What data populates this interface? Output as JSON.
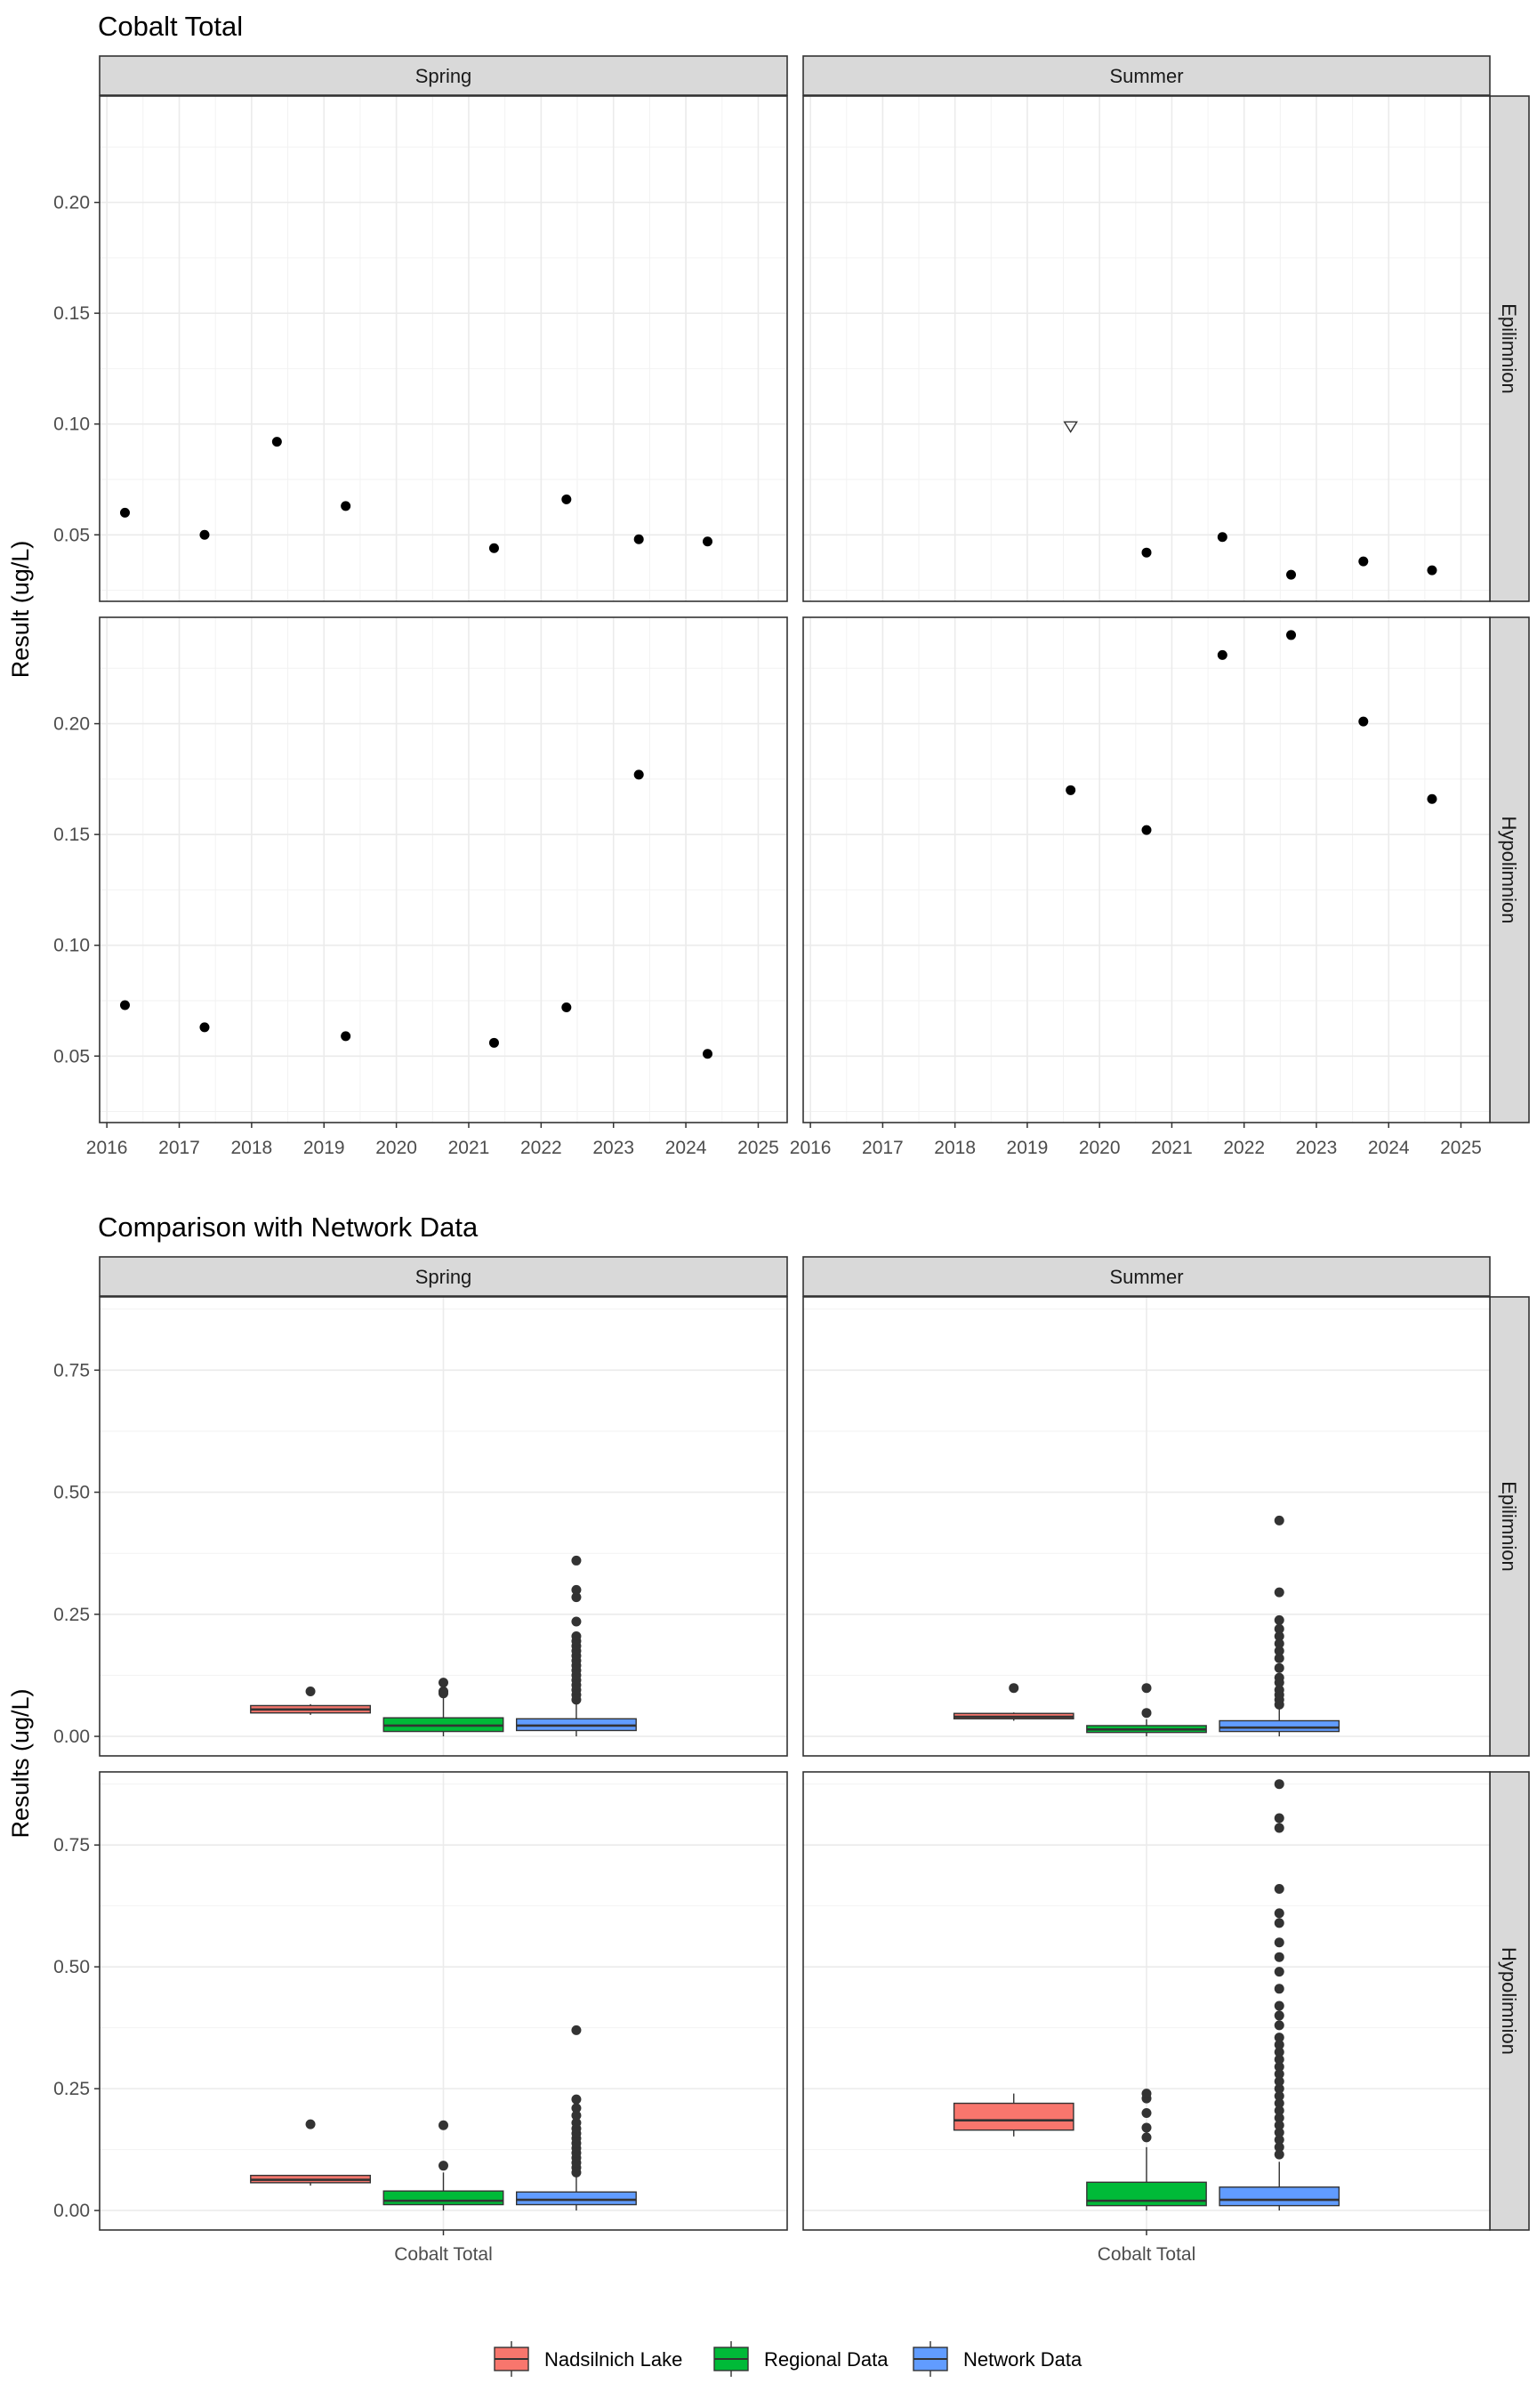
{
  "chart_data": [
    {
      "type": "scatter",
      "title": "Cobalt Total",
      "xlabel": "",
      "ylabel": "Result (ug/L)",
      "columns": [
        "Spring",
        "Summer"
      ],
      "rows": [
        "Epilimnion",
        "Hypolimnion"
      ],
      "x_ticks": [
        "2016",
        "2017",
        "2018",
        "2019",
        "2020",
        "2021",
        "2022",
        "2023",
        "2024",
        "2025"
      ],
      "xlim": [
        2015.9,
        2025.4
      ],
      "ylim": [
        0.02,
        0.248
      ],
      "y_ticks": [
        "0.05",
        "0.10",
        "0.15",
        "0.20"
      ],
      "grid": true,
      "panels": [
        {
          "column": "Spring",
          "row": "Epilimnion",
          "points": [
            {
              "x": 2016.25,
              "y": 0.06
            },
            {
              "x": 2017.35,
              "y": 0.05
            },
            {
              "x": 2018.35,
              "y": 0.092
            },
            {
              "x": 2019.3,
              "y": 0.063
            },
            {
              "x": 2021.35,
              "y": 0.044
            },
            {
              "x": 2022.35,
              "y": 0.066
            },
            {
              "x": 2023.35,
              "y": 0.048
            },
            {
              "x": 2024.3,
              "y": 0.047
            }
          ]
        },
        {
          "column": "Summer",
          "row": "Epilimnion",
          "points": [
            {
              "x": 2019.6,
              "y": 0.099,
              "marker": "open-triangle-down"
            },
            {
              "x": 2020.65,
              "y": 0.042
            },
            {
              "x": 2021.7,
              "y": 0.049
            },
            {
              "x": 2022.65,
              "y": 0.032
            },
            {
              "x": 2023.65,
              "y": 0.038
            },
            {
              "x": 2024.6,
              "y": 0.034
            }
          ]
        },
        {
          "column": "Spring",
          "row": "Hypolimnion",
          "points": [
            {
              "x": 2016.25,
              "y": 0.073
            },
            {
              "x": 2017.35,
              "y": 0.063
            },
            {
              "x": 2019.3,
              "y": 0.059
            },
            {
              "x": 2021.35,
              "y": 0.056
            },
            {
              "x": 2022.35,
              "y": 0.072
            },
            {
              "x": 2023.35,
              "y": 0.177
            },
            {
              "x": 2024.3,
              "y": 0.051
            }
          ]
        },
        {
          "column": "Summer",
          "row": "Hypolimnion",
          "points": [
            {
              "x": 2019.6,
              "y": 0.17
            },
            {
              "x": 2020.65,
              "y": 0.152
            },
            {
              "x": 2021.7,
              "y": 0.231
            },
            {
              "x": 2022.65,
              "y": 0.24
            },
            {
              "x": 2023.65,
              "y": 0.201
            },
            {
              "x": 2024.6,
              "y": 0.166
            }
          ]
        }
      ]
    },
    {
      "type": "box",
      "title": "Comparison with Network Data",
      "xlabel": "",
      "ylabel": "Results (ug/L)",
      "categories": [
        "Cobalt Total"
      ],
      "columns": [
        "Spring",
        "Summer"
      ],
      "rows": [
        "Epilimnion",
        "Hypolimnion"
      ],
      "ylim": [
        -0.04,
        0.9
      ],
      "y_ticks": [
        "0.00",
        "0.25",
        "0.50",
        "0.75"
      ],
      "grid": true,
      "legend_position": "bottom",
      "series": [
        {
          "name": "Nadsilnich Lake",
          "color": "#F8766D"
        },
        {
          "name": "Regional Data",
          "color": "#00BA38"
        },
        {
          "name": "Network Data",
          "color": "#619CFF"
        }
      ],
      "panels": [
        {
          "column": "Spring",
          "row": "Epilimnion",
          "boxes": [
            {
              "series": "Nadsilnich Lake",
              "q1": 0.048,
              "median": 0.055,
              "q3": 0.063,
              "whisker_low": 0.044,
              "whisker_high": 0.066,
              "outliers": [
                0.092
              ]
            },
            {
              "series": "Regional Data",
              "q1": 0.01,
              "median": 0.022,
              "q3": 0.038,
              "whisker_low": 0.0,
              "whisker_high": 0.08,
              "outliers": [
                0.088,
                0.092,
                0.11
              ]
            },
            {
              "series": "Network Data",
              "q1": 0.012,
              "median": 0.022,
              "q3": 0.036,
              "whisker_low": 0.0,
              "whisker_high": 0.068,
              "outliers": [
                0.075,
                0.085,
                0.095,
                0.105,
                0.115,
                0.125,
                0.135,
                0.145,
                0.155,
                0.165,
                0.175,
                0.185,
                0.195,
                0.205,
                0.235,
                0.285,
                0.3,
                0.36
              ]
            }
          ]
        },
        {
          "column": "Summer",
          "row": "Epilimnion",
          "boxes": [
            {
              "series": "Nadsilnich Lake",
              "q1": 0.036,
              "median": 0.04,
              "q3": 0.047,
              "whisker_low": 0.032,
              "whisker_high": 0.049,
              "outliers": [
                0.099
              ]
            },
            {
              "series": "Regional Data",
              "q1": 0.008,
              "median": 0.014,
              "q3": 0.022,
              "whisker_low": 0.0,
              "whisker_high": 0.035,
              "outliers": [
                0.048,
                0.099
              ]
            },
            {
              "series": "Network Data",
              "q1": 0.01,
              "median": 0.018,
              "q3": 0.032,
              "whisker_low": 0.0,
              "whisker_high": 0.058,
              "outliers": [
                0.065,
                0.075,
                0.085,
                0.095,
                0.11,
                0.12,
                0.14,
                0.16,
                0.175,
                0.19,
                0.205,
                0.22,
                0.238,
                0.295,
                0.442
              ]
            }
          ]
        },
        {
          "column": "Spring",
          "row": "Hypolimnion",
          "boxes": [
            {
              "series": "Nadsilnich Lake",
              "q1": 0.057,
              "median": 0.063,
              "q3": 0.072,
              "whisker_low": 0.051,
              "whisker_high": 0.073,
              "outliers": [
                0.177
              ]
            },
            {
              "series": "Regional Data",
              "q1": 0.012,
              "median": 0.02,
              "q3": 0.04,
              "whisker_low": 0.0,
              "whisker_high": 0.078,
              "outliers": [
                0.092,
                0.175
              ]
            },
            {
              "series": "Network Data",
              "q1": 0.012,
              "median": 0.022,
              "q3": 0.038,
              "whisker_low": 0.0,
              "whisker_high": 0.07,
              "outliers": [
                0.078,
                0.088,
                0.098,
                0.108,
                0.118,
                0.128,
                0.138,
                0.148,
                0.158,
                0.168,
                0.18,
                0.195,
                0.21,
                0.228,
                0.37
              ]
            }
          ]
        },
        {
          "column": "Summer",
          "row": "Hypolimnion",
          "boxes": [
            {
              "series": "Nadsilnich Lake",
              "q1": 0.165,
              "median": 0.185,
              "q3": 0.22,
              "whisker_low": 0.152,
              "whisker_high": 0.24,
              "outliers": []
            },
            {
              "series": "Regional Data",
              "q1": 0.01,
              "median": 0.02,
              "q3": 0.058,
              "whisker_low": 0.0,
              "whisker_high": 0.13,
              "outliers": [
                0.15,
                0.17,
                0.2,
                0.23,
                0.24
              ]
            },
            {
              "series": "Network Data",
              "q1": 0.01,
              "median": 0.022,
              "q3": 0.048,
              "whisker_low": 0.0,
              "whisker_high": 0.1,
              "outliers": [
                0.115,
                0.13,
                0.145,
                0.16,
                0.175,
                0.19,
                0.205,
                0.22,
                0.235,
                0.25,
                0.265,
                0.28,
                0.295,
                0.31,
                0.325,
                0.34,
                0.355,
                0.38,
                0.4,
                0.42,
                0.455,
                0.49,
                0.52,
                0.55,
                0.59,
                0.61,
                0.66,
                0.785,
                0.805,
                0.875
              ]
            }
          ]
        }
      ]
    }
  ]
}
